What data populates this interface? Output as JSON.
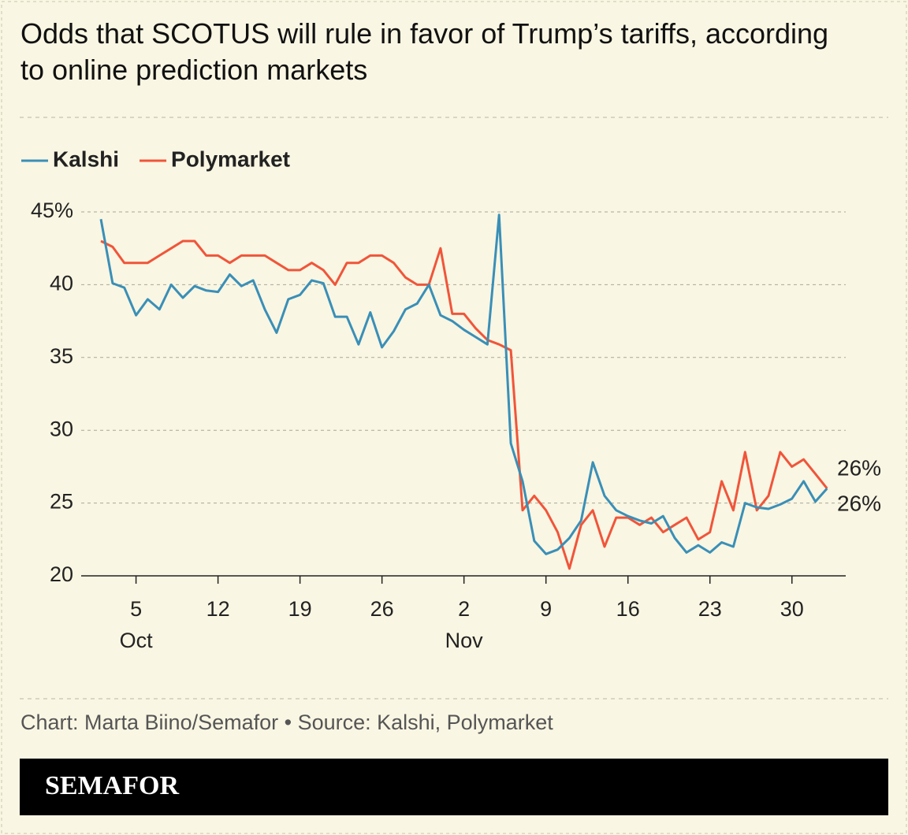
{
  "chart_data": {
    "type": "line",
    "title": "Odds that SCOTUS will rule in favor of Trump’s tariffs, according to online prediction markets",
    "credit": "Chart: Marta Biino/Semafor • Source: Kalshi, Polymarket",
    "brand": "SEMAFOR",
    "x": [
      "Oct 2",
      "Oct 3",
      "Oct 4",
      "Oct 5",
      "Oct 6",
      "Oct 7",
      "Oct 8",
      "Oct 9",
      "Oct 10",
      "Oct 11",
      "Oct 12",
      "Oct 13",
      "Oct 14",
      "Oct 15",
      "Oct 16",
      "Oct 17",
      "Oct 18",
      "Oct 19",
      "Oct 20",
      "Oct 21",
      "Oct 22",
      "Oct 23",
      "Oct 24",
      "Oct 25",
      "Oct 26",
      "Oct 27",
      "Oct 28",
      "Oct 29",
      "Oct 30",
      "Oct 31",
      "Nov 1",
      "Nov 2",
      "Nov 3",
      "Nov 4",
      "Nov 5",
      "Nov 6",
      "Nov 7",
      "Nov 8",
      "Nov 9",
      "Nov 10",
      "Nov 11",
      "Nov 12",
      "Nov 13",
      "Nov 14",
      "Nov 15",
      "Nov 16",
      "Nov 17",
      "Nov 18",
      "Nov 19",
      "Nov 20",
      "Nov 21",
      "Nov 22",
      "Nov 23",
      "Nov 24",
      "Nov 25",
      "Nov 26",
      "Nov 27",
      "Nov 28",
      "Nov 29",
      "Nov 30",
      "Dec 1",
      "Dec 2",
      "Dec 3"
    ],
    "series": [
      {
        "name": "Kalshi",
        "color": "#3a8fb7",
        "end_label": "26%",
        "values": [
          44.5,
          40.1,
          39.8,
          37.9,
          39,
          38.3,
          40,
          39.1,
          39.9,
          39.6,
          39.5,
          40.7,
          39.9,
          40.3,
          38.3,
          36.7,
          39,
          39.3,
          40.3,
          40.1,
          37.8,
          37.8,
          35.9,
          38.1,
          35.7,
          36.8,
          38.3,
          38.7,
          40,
          37.9,
          37.5,
          36.9,
          36.4,
          35.9,
          44.8,
          29.1,
          26.5,
          22.4,
          21.5,
          21.8,
          22.6,
          23.8,
          27.8,
          25.5,
          24.5,
          24.1,
          23.8,
          23.6,
          24.1,
          22.6,
          21.6,
          22.1,
          21.6,
          22.3,
          22,
          25,
          24.7,
          24.6,
          24.9,
          25.3,
          26.5,
          25.1,
          26
        ]
      },
      {
        "name": "Polymarket",
        "color": "#f0553a",
        "end_label": "26%",
        "values": [
          43,
          42.6,
          41.5,
          41.5,
          41.5,
          42,
          42.5,
          43,
          43,
          42,
          42,
          41.5,
          42,
          42,
          42,
          41.5,
          41,
          41,
          41.5,
          41,
          40,
          41.5,
          41.5,
          42,
          42,
          41.5,
          40.5,
          40,
          40,
          42.5,
          38,
          38,
          37,
          36.2,
          35.9,
          35.5,
          24.5,
          25.5,
          24.5,
          23,
          20.5,
          23.5,
          24.5,
          22,
          24,
          24,
          23.5,
          24,
          23,
          23.5,
          24,
          22.5,
          23,
          26.5,
          24.5,
          28.5,
          24.5,
          25.5,
          28.5,
          27.5,
          28,
          27,
          26
        ]
      }
    ],
    "xticks": [
      {
        "value": "Oct 5",
        "label": "5"
      },
      {
        "value": "Oct 12",
        "label": "12"
      },
      {
        "value": "Oct 19",
        "label": "19"
      },
      {
        "value": "Oct 26",
        "label": "26"
      },
      {
        "value": "Nov 2",
        "label": "2"
      },
      {
        "value": "Nov 9",
        "label": "9"
      },
      {
        "value": "Nov 16",
        "label": "16"
      },
      {
        "value": "Nov 23",
        "label": "23"
      },
      {
        "value": "Nov 30",
        "label": "30"
      }
    ],
    "month_labels": [
      {
        "value": "Oct 5",
        "label": "Oct"
      },
      {
        "value": "Nov 2",
        "label": "Nov"
      }
    ],
    "ylim": [
      20,
      45
    ],
    "yticks": [
      20,
      25,
      30,
      35,
      40,
      {
        "value": 45,
        "label": "45%"
      }
    ],
    "grid": true
  }
}
